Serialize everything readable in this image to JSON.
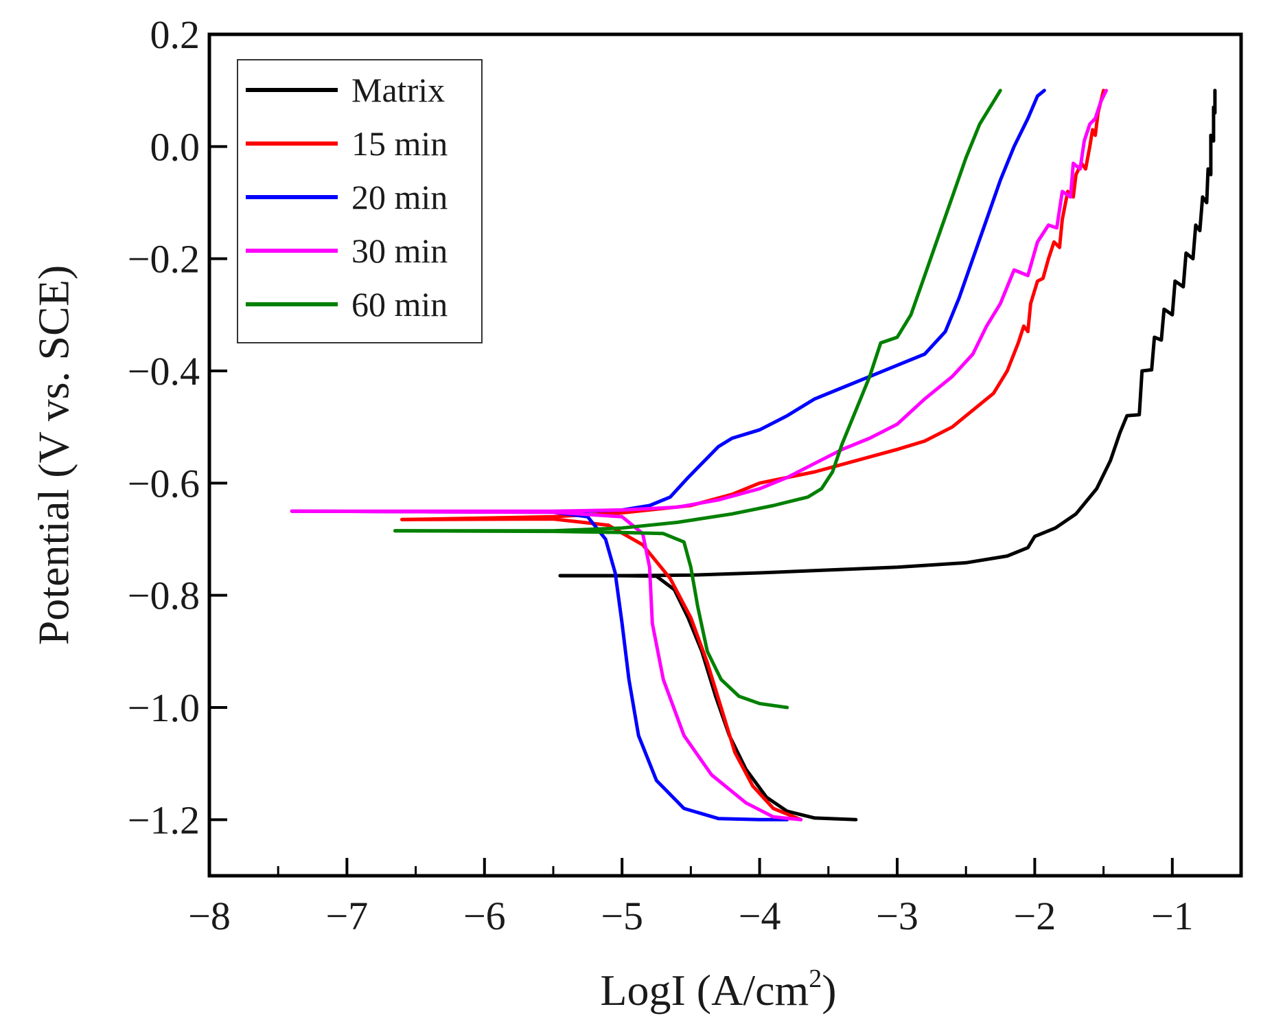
{
  "chart_data": {
    "type": "line",
    "title": "",
    "xlabel_main": "LogI (A/cm",
    "xlabel_sup": "2",
    "xlabel_close": ")",
    "ylabel": "Potential (V vs. SCE)",
    "xlim": [
      -8,
      -0.5
    ],
    "ylim": [
      -1.3,
      0.2
    ],
    "x_ticks": [
      -8,
      -7,
      -6,
      -5,
      -4,
      -3,
      -2,
      -1
    ],
    "x_tick_labels": [
      "−8",
      "−7",
      "−6",
      "−5",
      "−4",
      "−3",
      "−2",
      "−1"
    ],
    "y_ticks": [
      0.2,
      0.0,
      -0.2,
      -0.4,
      -0.6,
      -0.8,
      -1.0,
      -1.2
    ],
    "y_tick_labels": [
      "0.2",
      "0.0",
      "−0.2",
      "−0.4",
      "−0.6",
      "−0.8",
      "−1.0",
      "−1.2"
    ],
    "legend_position": "top-left",
    "series": [
      {
        "name": "Matrix",
        "color": "#000000",
        "anodic": [
          [
            -5.45,
            -0.765
          ],
          [
            -5.0,
            -0.765
          ],
          [
            -4.5,
            -0.764
          ],
          [
            -4.0,
            -0.76
          ],
          [
            -3.5,
            -0.755
          ],
          [
            -3.0,
            -0.75
          ],
          [
            -2.5,
            -0.742
          ],
          [
            -2.2,
            -0.73
          ],
          [
            -2.05,
            -0.715
          ],
          [
            -2.0,
            -0.695
          ],
          [
            -1.85,
            -0.68
          ],
          [
            -1.7,
            -0.655
          ],
          [
            -1.55,
            -0.61
          ],
          [
            -1.45,
            -0.56
          ],
          [
            -1.38,
            -0.51
          ],
          [
            -1.33,
            -0.48
          ],
          [
            -1.24,
            -0.478
          ],
          [
            -1.22,
            -0.4
          ],
          [
            -1.15,
            -0.398
          ],
          [
            -1.13,
            -0.34
          ],
          [
            -1.08,
            -0.345
          ],
          [
            -1.06,
            -0.29
          ],
          [
            -1.0,
            -0.3
          ],
          [
            -0.98,
            -0.24
          ],
          [
            -0.92,
            -0.25
          ],
          [
            -0.9,
            -0.19
          ],
          [
            -0.85,
            -0.2
          ],
          [
            -0.83,
            -0.14
          ],
          [
            -0.8,
            -0.15
          ],
          [
            -0.78,
            -0.09
          ],
          [
            -0.75,
            -0.1
          ],
          [
            -0.74,
            -0.04
          ],
          [
            -0.72,
            -0.05
          ],
          [
            -0.72,
            0.02
          ],
          [
            -0.7,
            0.01
          ],
          [
            -0.7,
            0.07
          ],
          [
            -0.69,
            0.06
          ],
          [
            -0.69,
            0.1
          ]
        ],
        "cathodic": [
          [
            -5.45,
            -0.765
          ],
          [
            -5.0,
            -0.765
          ],
          [
            -4.75,
            -0.766
          ],
          [
            -4.62,
            -0.79
          ],
          [
            -4.52,
            -0.84
          ],
          [
            -4.42,
            -0.9
          ],
          [
            -4.32,
            -0.98
          ],
          [
            -4.22,
            -1.05
          ],
          [
            -4.1,
            -1.11
          ],
          [
            -3.95,
            -1.16
          ],
          [
            -3.8,
            -1.185
          ],
          [
            -3.6,
            -1.197
          ],
          [
            -3.3,
            -1.2
          ]
        ]
      },
      {
        "name": "15 min",
        "color": "#ff0000",
        "anodic": [
          [
            -6.6,
            -0.665
          ],
          [
            -5.5,
            -0.66
          ],
          [
            -5.0,
            -0.653
          ],
          [
            -4.5,
            -0.64
          ],
          [
            -4.2,
            -0.62
          ],
          [
            -4.0,
            -0.6
          ],
          [
            -3.6,
            -0.58
          ],
          [
            -3.3,
            -0.56
          ],
          [
            -3.0,
            -0.54
          ],
          [
            -2.8,
            -0.525
          ],
          [
            -2.6,
            -0.5
          ],
          [
            -2.45,
            -0.47
          ],
          [
            -2.3,
            -0.44
          ],
          [
            -2.2,
            -0.4
          ],
          [
            -2.12,
            -0.35
          ],
          [
            -2.08,
            -0.32
          ],
          [
            -2.05,
            -0.33
          ],
          [
            -2.03,
            -0.28
          ],
          [
            -1.98,
            -0.24
          ],
          [
            -1.94,
            -0.235
          ],
          [
            -1.9,
            -0.2
          ],
          [
            -1.86,
            -0.17
          ],
          [
            -1.82,
            -0.18
          ],
          [
            -1.8,
            -0.13
          ],
          [
            -1.76,
            -0.08
          ],
          [
            -1.72,
            -0.09
          ],
          [
            -1.7,
            -0.05
          ],
          [
            -1.66,
            -0.03
          ],
          [
            -1.63,
            -0.04
          ],
          [
            -1.6,
            0.0
          ],
          [
            -1.58,
            0.03
          ],
          [
            -1.56,
            0.02
          ],
          [
            -1.54,
            0.06
          ],
          [
            -1.52,
            0.08
          ],
          [
            -1.5,
            0.1
          ]
        ],
        "cathodic": [
          [
            -6.6,
            -0.665
          ],
          [
            -5.5,
            -0.664
          ],
          [
            -5.1,
            -0.675
          ],
          [
            -4.85,
            -0.71
          ],
          [
            -4.65,
            -0.77
          ],
          [
            -4.5,
            -0.84
          ],
          [
            -4.38,
            -0.92
          ],
          [
            -4.28,
            -1.0
          ],
          [
            -4.18,
            -1.08
          ],
          [
            -4.05,
            -1.14
          ],
          [
            -3.9,
            -1.18
          ],
          [
            -3.7,
            -1.2
          ]
        ]
      },
      {
        "name": "20 min",
        "color": "#0000ff",
        "anodic": [
          [
            -5.3,
            -0.65
          ],
          [
            -5.0,
            -0.648
          ],
          [
            -4.8,
            -0.64
          ],
          [
            -4.65,
            -0.625
          ],
          [
            -4.52,
            -0.59
          ],
          [
            -4.4,
            -0.56
          ],
          [
            -4.3,
            -0.535
          ],
          [
            -4.2,
            -0.52
          ],
          [
            -4.0,
            -0.505
          ],
          [
            -3.8,
            -0.48
          ],
          [
            -3.6,
            -0.45
          ],
          [
            -3.4,
            -0.43
          ],
          [
            -3.2,
            -0.41
          ],
          [
            -3.0,
            -0.39
          ],
          [
            -2.8,
            -0.37
          ],
          [
            -2.65,
            -0.33
          ],
          [
            -2.55,
            -0.27
          ],
          [
            -2.45,
            -0.2
          ],
          [
            -2.35,
            -0.13
          ],
          [
            -2.25,
            -0.06
          ],
          [
            -2.15,
            0.0
          ],
          [
            -2.05,
            0.05
          ],
          [
            -1.98,
            0.09
          ],
          [
            -1.93,
            0.1
          ]
        ],
        "cathodic": [
          [
            -7.4,
            -0.65
          ],
          [
            -5.5,
            -0.652
          ],
          [
            -5.25,
            -0.66
          ],
          [
            -5.12,
            -0.7
          ],
          [
            -5.05,
            -0.76
          ],
          [
            -5.0,
            -0.85
          ],
          [
            -4.95,
            -0.95
          ],
          [
            -4.88,
            -1.05
          ],
          [
            -4.75,
            -1.13
          ],
          [
            -4.55,
            -1.18
          ],
          [
            -4.3,
            -1.198
          ],
          [
            -4.0,
            -1.2
          ],
          [
            -3.8,
            -1.2
          ]
        ]
      },
      {
        "name": "30 min",
        "color": "#ff00ff",
        "anodic": [
          [
            -7.4,
            -0.65
          ],
          [
            -5.5,
            -0.65
          ],
          [
            -5.0,
            -0.648
          ],
          [
            -4.6,
            -0.643
          ],
          [
            -4.3,
            -0.63
          ],
          [
            -4.0,
            -0.61
          ],
          [
            -3.8,
            -0.59
          ],
          [
            -3.6,
            -0.565
          ],
          [
            -3.4,
            -0.54
          ],
          [
            -3.2,
            -0.52
          ],
          [
            -3.0,
            -0.495
          ],
          [
            -2.8,
            -0.45
          ],
          [
            -2.6,
            -0.41
          ],
          [
            -2.45,
            -0.37
          ],
          [
            -2.35,
            -0.32
          ],
          [
            -2.25,
            -0.28
          ],
          [
            -2.15,
            -0.22
          ],
          [
            -2.05,
            -0.23
          ],
          [
            -1.98,
            -0.17
          ],
          [
            -1.9,
            -0.14
          ],
          [
            -1.84,
            -0.145
          ],
          [
            -1.8,
            -0.08
          ],
          [
            -1.74,
            -0.09
          ],
          [
            -1.72,
            -0.03
          ],
          [
            -1.67,
            -0.04
          ],
          [
            -1.64,
            0.01
          ],
          [
            -1.6,
            0.04
          ],
          [
            -1.56,
            0.05
          ],
          [
            -1.52,
            0.08
          ],
          [
            -1.48,
            0.1
          ]
        ],
        "cathodic": [
          [
            -7.4,
            -0.65
          ],
          [
            -5.5,
            -0.652
          ],
          [
            -5.0,
            -0.66
          ],
          [
            -4.85,
            -0.69
          ],
          [
            -4.8,
            -0.75
          ],
          [
            -4.78,
            -0.85
          ],
          [
            -4.7,
            -0.95
          ],
          [
            -4.55,
            -1.05
          ],
          [
            -4.35,
            -1.12
          ],
          [
            -4.1,
            -1.17
          ],
          [
            -3.9,
            -1.195
          ],
          [
            -3.7,
            -1.2
          ]
        ]
      },
      {
        "name": "60 min",
        "color": "#008000",
        "anodic": [
          [
            -6.65,
            -0.685
          ],
          [
            -5.5,
            -0.685
          ],
          [
            -5.0,
            -0.68
          ],
          [
            -4.6,
            -0.67
          ],
          [
            -4.2,
            -0.655
          ],
          [
            -3.9,
            -0.64
          ],
          [
            -3.65,
            -0.625
          ],
          [
            -3.55,
            -0.61
          ],
          [
            -3.47,
            -0.58
          ],
          [
            -3.4,
            -0.53
          ],
          [
            -3.3,
            -0.47
          ],
          [
            -3.2,
            -0.41
          ],
          [
            -3.12,
            -0.35
          ],
          [
            -3.0,
            -0.34
          ],
          [
            -2.9,
            -0.3
          ],
          [
            -2.8,
            -0.23
          ],
          [
            -2.7,
            -0.16
          ],
          [
            -2.6,
            -0.09
          ],
          [
            -2.5,
            -0.02
          ],
          [
            -2.4,
            0.04
          ],
          [
            -2.3,
            0.08
          ],
          [
            -2.25,
            0.1
          ]
        ],
        "cathodic": [
          [
            -6.65,
            -0.685
          ],
          [
            -5.5,
            -0.686
          ],
          [
            -5.0,
            -0.688
          ],
          [
            -4.7,
            -0.69
          ],
          [
            -4.55,
            -0.705
          ],
          [
            -4.5,
            -0.75
          ],
          [
            -4.45,
            -0.82
          ],
          [
            -4.38,
            -0.9
          ],
          [
            -4.28,
            -0.95
          ],
          [
            -4.15,
            -0.98
          ],
          [
            -4.0,
            -0.993
          ],
          [
            -3.8,
            -1.0
          ]
        ]
      }
    ]
  }
}
